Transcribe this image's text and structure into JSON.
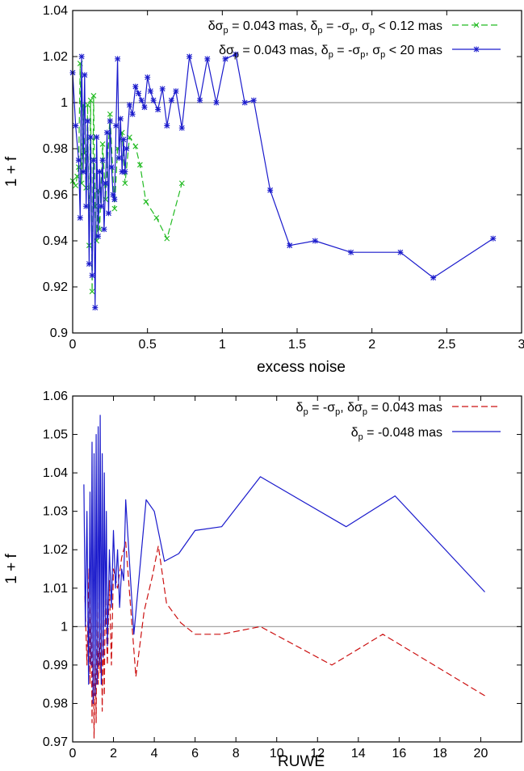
{
  "chart_data": [
    {
      "type": "line",
      "xlabel": "excess noise",
      "ylabel": "1 + f",
      "xlim": [
        0,
        3
      ],
      "ylim": [
        0.9,
        1.04
      ],
      "xticks": [
        "0",
        "0.5",
        "1",
        "1.5",
        "2",
        "2.5",
        "3"
      ],
      "yticks": [
        "0.9",
        "0.92",
        "0.94",
        "0.96",
        "0.98",
        "1",
        "1.02",
        "1.04"
      ],
      "reference_line": 1,
      "legend_position": "top-right",
      "series": [
        {
          "name": "δσp = 0.043 mas, δp = -σp, σp < 0.12 mas",
          "legend_parts": [
            "δσ",
            "p",
            " = 0.043 mas, δ",
            "p",
            " = -σ",
            "p",
            ", σ",
            "p",
            " < 0.12 mas"
          ],
          "color": "#22bb22",
          "style": "dashed",
          "marker": "x",
          "x": [
            0.0,
            0.02,
            0.03,
            0.04,
            0.05,
            0.06,
            0.07,
            0.08,
            0.09,
            0.1,
            0.11,
            0.12,
            0.13,
            0.14,
            0.15,
            0.16,
            0.17,
            0.18,
            0.2,
            0.22,
            0.25,
            0.28,
            0.3,
            0.33,
            0.35,
            0.38,
            0.42,
            0.45,
            0.49,
            0.56,
            0.63,
            0.73
          ],
          "y": [
            0.966,
            0.964,
            0.968,
            0.972,
            1.017,
            0.965,
            0.999,
            0.978,
            0.963,
            0.999,
            0.938,
            1.001,
            0.918,
            1.003,
            0.955,
            0.94,
            0.962,
            0.945,
            0.982,
            0.958,
            0.995,
            0.954,
            0.98,
            0.987,
            0.965,
            0.985,
            0.981,
            0.973,
            0.957,
            0.95,
            0.941,
            0.965
          ]
        },
        {
          "name": "δσp = 0.043 mas, δp = -σp, σp < 20 mas",
          "legend_parts": [
            "δσ",
            "p",
            " = 0.043 mas, δ",
            "p",
            " = -σ",
            "p",
            ", σ",
            "p",
            " < 20 mas"
          ],
          "color": "#1a1acc",
          "style": "solid",
          "marker": "*",
          "x": [
            0.0,
            0.02,
            0.04,
            0.05,
            0.06,
            0.07,
            0.08,
            0.09,
            0.1,
            0.11,
            0.12,
            0.13,
            0.14,
            0.15,
            0.16,
            0.17,
            0.18,
            0.19,
            0.2,
            0.21,
            0.22,
            0.23,
            0.24,
            0.25,
            0.26,
            0.27,
            0.28,
            0.29,
            0.3,
            0.31,
            0.32,
            0.33,
            0.34,
            0.35,
            0.36,
            0.38,
            0.4,
            0.42,
            0.44,
            0.46,
            0.48,
            0.5,
            0.52,
            0.54,
            0.57,
            0.6,
            0.63,
            0.66,
            0.69,
            0.73,
            0.78,
            0.85,
            0.9,
            0.96,
            1.02,
            1.09,
            1.15,
            1.21,
            1.32,
            1.45,
            1.62,
            1.86,
            2.19,
            2.41,
            2.81
          ],
          "y": [
            1.013,
            0.99,
            0.975,
            0.95,
            1.02,
            0.97,
            1.012,
            0.955,
            0.992,
            0.93,
            0.985,
            0.925,
            0.975,
            0.911,
            0.985,
            0.942,
            0.97,
            0.955,
            0.975,
            0.945,
            0.965,
            0.987,
            0.952,
            0.992,
            0.972,
            0.96,
            0.958,
            0.99,
            1.019,
            0.976,
            0.993,
            0.97,
            0.984,
            0.97,
            0.98,
            0.999,
            0.995,
            1.007,
            1.004,
            1.001,
            0.998,
            1.011,
            1.005,
            1.001,
            0.997,
            1.006,
            0.99,
            1.001,
            1.005,
            0.989,
            1.02,
            1.001,
            1.019,
            1.0,
            1.019,
            1.021,
            1.0,
            1.001,
            0.962,
            0.938,
            0.94,
            0.935,
            0.935,
            0.924,
            0.941
          ]
        }
      ]
    },
    {
      "type": "line",
      "xlabel": "RUWE",
      "ylabel": "1 + f",
      "xlim": [
        0,
        22
      ],
      "ylim": [
        0.97,
        1.06
      ],
      "xticks": [
        "0",
        "2",
        "4",
        "6",
        "8",
        "10",
        "12",
        "14",
        "16",
        "18",
        "20"
      ],
      "yticks": [
        "0.97",
        "0.98",
        "0.99",
        "1",
        "1.01",
        "1.02",
        "1.03",
        "1.04",
        "1.05",
        "1.06"
      ],
      "reference_line": 1,
      "legend_position": "top-right",
      "series": [
        {
          "name": "δp = -σp, δσp = 0.043 mas",
          "legend_parts": [
            "δ",
            "p",
            " = -σ",
            "p",
            ", δσ",
            "p",
            " = 0.043 mas"
          ],
          "color": "#cc1111",
          "style": "dashed",
          "x": [
            0.6,
            0.7,
            0.8,
            0.85,
            0.9,
            0.95,
            1.0,
            1.05,
            1.1,
            1.15,
            1.2,
            1.25,
            1.3,
            1.35,
            1.4,
            1.45,
            1.5,
            1.55,
            1.6,
            1.7,
            1.8,
            1.9,
            2.0,
            2.2,
            2.4,
            2.6,
            3.1,
            3.5,
            3.9,
            4.2,
            4.6,
            5.3,
            6.0,
            7.3,
            9.2,
            12.7,
            15.2,
            20.2
          ],
          "y": [
            1.008,
            0.99,
            1.015,
            0.985,
            1.012,
            0.975,
            1.005,
            0.971,
            0.995,
            0.975,
            1.012,
            0.985,
            0.998,
            0.988,
            1.008,
            0.978,
            1.002,
            0.982,
            1.01,
            0.99,
            1.012,
            0.99,
            1.015,
            1.01,
            1.018,
            1.022,
            0.987,
            1.004,
            1.013,
            1.021,
            1.006,
            1.001,
            0.998,
            0.998,
            1.0,
            0.99,
            0.998,
            0.982
          ]
        },
        {
          "name": "δp = -0.048 mas",
          "legend_parts": [
            "δ",
            "p",
            " = -0.048 mas"
          ],
          "color": "#1a1acc",
          "style": "solid",
          "x": [
            0.55,
            0.62,
            0.7,
            0.78,
            0.85,
            0.9,
            0.95,
            1.0,
            1.05,
            1.1,
            1.15,
            1.2,
            1.25,
            1.3,
            1.35,
            1.4,
            1.45,
            1.5,
            1.55,
            1.6,
            1.65,
            1.7,
            1.8,
            1.9,
            2.0,
            2.1,
            2.2,
            2.3,
            2.4,
            2.5,
            2.6,
            3.0,
            3.6,
            4.0,
            4.5,
            5.2,
            6.0,
            7.3,
            9.2,
            13.4,
            15.8,
            20.2
          ],
          "y": [
            1.037,
            1.0,
            1.03,
            0.985,
            1.035,
            0.99,
            1.048,
            0.98,
            1.045,
            0.982,
            1.05,
            0.985,
            1.052,
            0.99,
            1.055,
            0.985,
            1.045,
            0.992,
            1.04,
            1.0,
            1.03,
            0.995,
            1.02,
            1.005,
            1.025,
            1.01,
            1.02,
            1.005,
            1.015,
            1.012,
            1.033,
            0.998,
            1.033,
            1.03,
            1.017,
            1.019,
            1.025,
            1.026,
            1.039,
            1.026,
            1.034,
            1.009
          ]
        }
      ]
    }
  ]
}
